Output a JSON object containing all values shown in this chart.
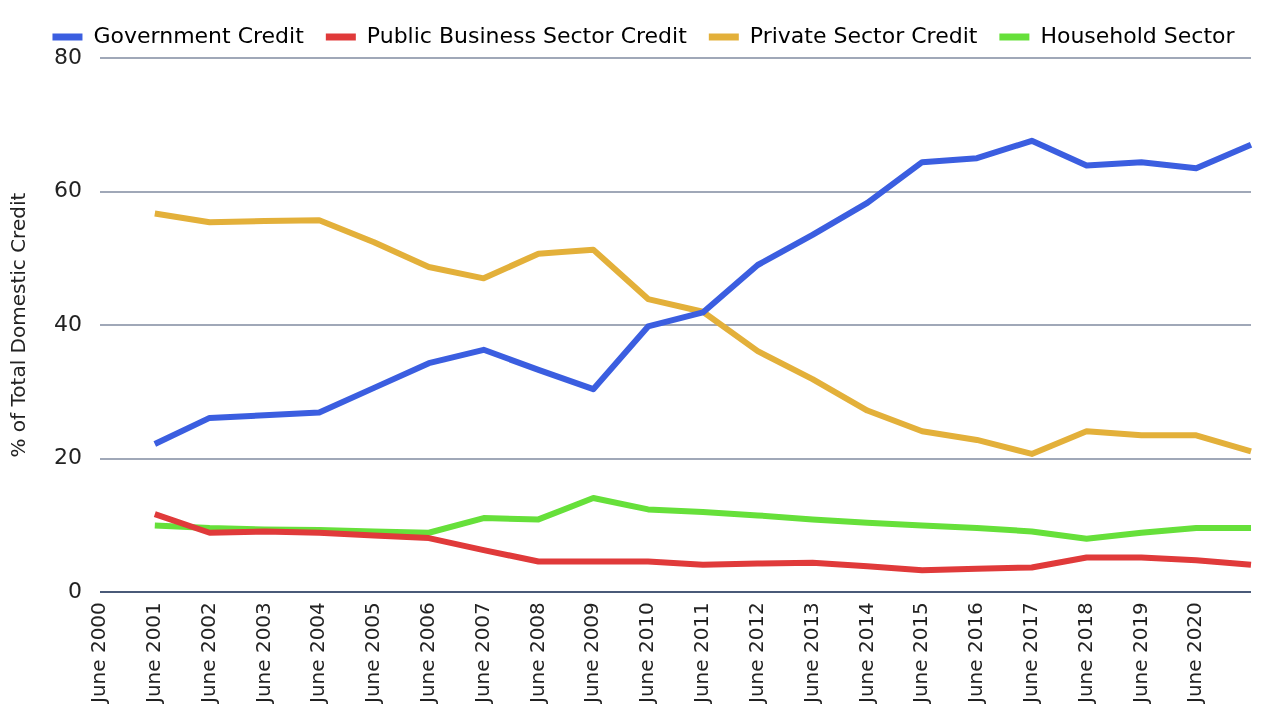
{
  "chart_data": {
    "type": "line",
    "ylabel": "% of Total Domestic Credit",
    "categories": [
      "June 2000",
      "June 2001",
      "June 2002",
      "June 2003",
      "June 2004",
      "June 2005",
      "June 2006",
      "June 2007",
      "June 2008",
      "June 2009",
      "June 2010",
      "June 2011",
      "June 2012",
      "June 2013",
      "June 2014",
      "June 2015",
      "June 2016",
      "June 2017",
      "June 2018",
      "June 2019",
      "June 2020",
      null
    ],
    "series": [
      {
        "name": "Government Credit",
        "color": "#3b5ee0",
        "values": [
          null,
          22.2,
          26.1,
          26.5,
          26.9,
          30.6,
          34.3,
          36.3,
          33.3,
          30.4,
          39.8,
          41.9,
          49,
          53.5,
          58.3,
          64.4,
          65,
          67.6,
          63.9,
          64.4,
          63.5,
          67
        ]
      },
      {
        "name": "Public Business Sector Credit",
        "color": "#e03a3a",
        "values": [
          null,
          11.7,
          8.9,
          9.1,
          8.9,
          8.5,
          8.1,
          6.3,
          4.6,
          4.6,
          4.6,
          4.1,
          4.3,
          4.4,
          3.9,
          3.3,
          3.5,
          3.7,
          5.2,
          5.2,
          4.8,
          4.1
        ]
      },
      {
        "name": "Private Sector Credit",
        "color": "#e3b03a",
        "values": [
          null,
          56.7,
          55.4,
          55.6,
          55.7,
          52.4,
          48.7,
          47,
          50.7,
          51.3,
          43.9,
          42,
          36.1,
          31.9,
          27.2,
          24.1,
          22.8,
          20.7,
          24.1,
          23.5,
          23.5,
          21.1
        ]
      },
      {
        "name": "Household Sector",
        "color": "#66e03a",
        "values": [
          null,
          10,
          9.6,
          9.4,
          9.3,
          9.1,
          8.9,
          11.1,
          10.9,
          14.1,
          12.4,
          12,
          11.5,
          10.9,
          10.4,
          10,
          9.6,
          9.1,
          8,
          8.9,
          9.6,
          9.6
        ]
      }
    ],
    "ylim": [
      0,
      80
    ],
    "yticks": [
      0,
      20,
      40,
      60,
      80
    ],
    "grid": "y",
    "legend": "top",
    "marker": "none",
    "line_style": "solid"
  }
}
